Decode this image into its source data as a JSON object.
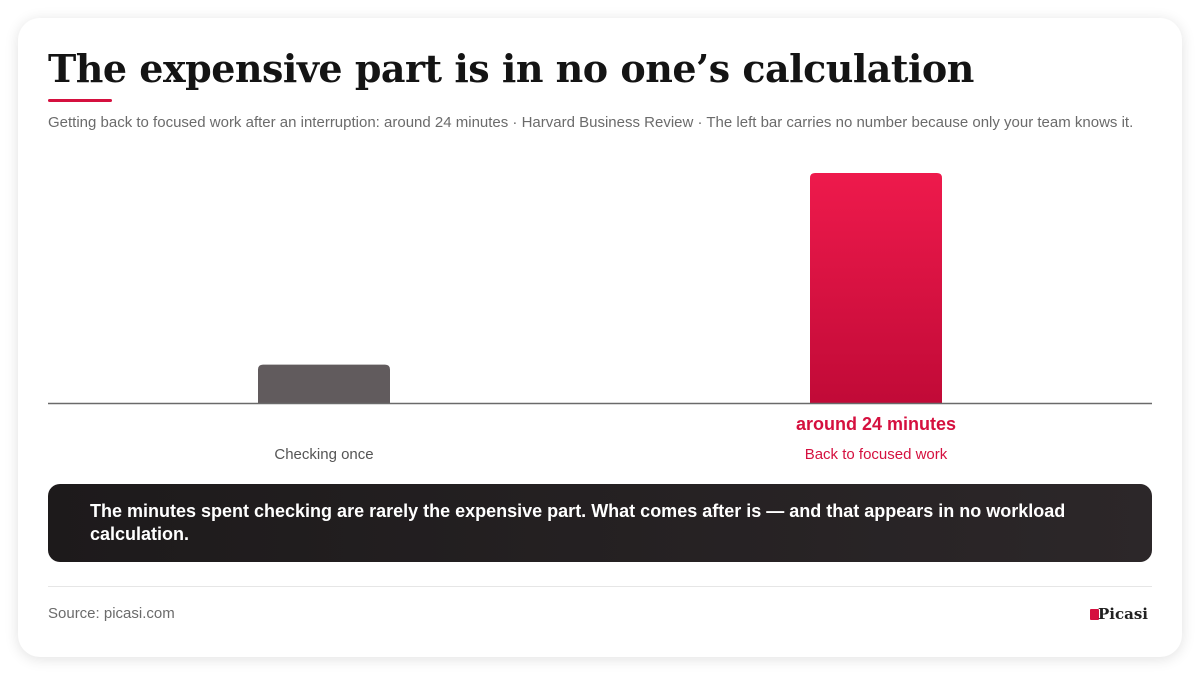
{
  "chart_data": {
    "type": "bar",
    "title": "The expensive part is in no one’s calculation",
    "subtitle": "Getting back to focused work after an interruption: around 24 minutes · Harvard Business Review · The left bar carries no number because only your team knows it.",
    "categories": [
      "Checking once",
      "Back to focused work"
    ],
    "values": [
      4,
      24
    ],
    "value_labels": [
      null,
      "around 24 minutes"
    ],
    "colors": [
      "#615b5d",
      "#d5103f"
    ]
  },
  "callout": "The minutes spent checking are rarely the expensive part. What comes after is — and that appears in no workload calculation.",
  "source": "Source: picasi.com",
  "brand": "Picasi"
}
